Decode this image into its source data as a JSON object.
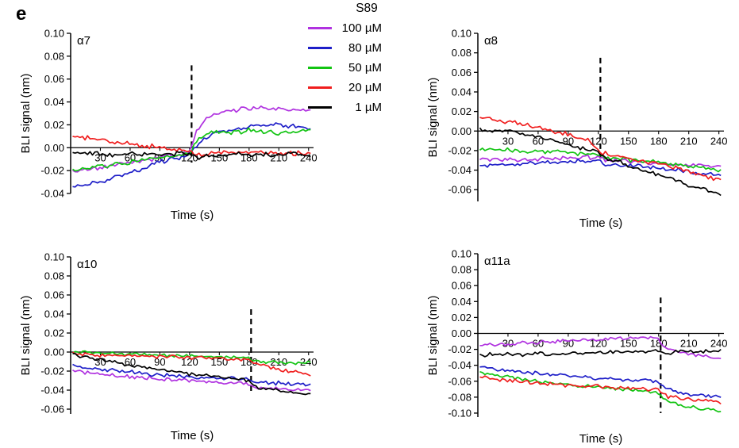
{
  "panel_label": "e",
  "legend": {
    "title": "S89",
    "entries": [
      {
        "label": "100 µM",
        "color": "#B032E0"
      },
      {
        "label": "80 µM",
        "color": "#1E1EC8"
      },
      {
        "label": "50 µM",
        "color": "#12C412"
      },
      {
        "label": "20 µM",
        "color": "#F01E1E"
      },
      {
        "label": "1 µM",
        "color": "#000000"
      }
    ]
  },
  "chart_data": [
    {
      "id": "a7",
      "type": "line",
      "title": "α7",
      "xlabel": "Time (s)",
      "ylabel": "BLI signal (nm)",
      "xlim": [
        0,
        245
      ],
      "ylim": [
        -0.04,
        0.1
      ],
      "xticks": [
        30,
        60,
        90,
        120,
        150,
        180,
        210,
        240
      ],
      "yticks": [
        0.1,
        0.08,
        0.06,
        0.04,
        0.02,
        0.0,
        -0.02,
        -0.04
      ],
      "vline": {
        "x": 122,
        "y_top": 0.072,
        "y_bottom": -0.013
      },
      "noise": 0.0016,
      "series": [
        {
          "name": "100 µM",
          "color": "#B032E0",
          "points": [
            [
              2,
              -0.021
            ],
            [
              60,
              -0.013
            ],
            [
              120,
              -0.004
            ],
            [
              126,
              0.012
            ],
            [
              135,
              0.025
            ],
            [
              150,
              0.031
            ],
            [
              180,
              0.035
            ],
            [
              210,
              0.034
            ],
            [
              243,
              0.033
            ]
          ]
        },
        {
          "name": "80 µM",
          "color": "#1E1EC8",
          "points": [
            [
              2,
              -0.034
            ],
            [
              30,
              -0.03
            ],
            [
              60,
              -0.022
            ],
            [
              90,
              -0.013
            ],
            [
              120,
              -0.006
            ],
            [
              130,
              0.006
            ],
            [
              150,
              0.014
            ],
            [
              180,
              0.018
            ],
            [
              210,
              0.02
            ],
            [
              243,
              0.017
            ]
          ]
        },
        {
          "name": "50 µM",
          "color": "#12C412",
          "points": [
            [
              2,
              -0.02
            ],
            [
              60,
              -0.013
            ],
            [
              120,
              -0.005
            ],
            [
              128,
              0.008
            ],
            [
              140,
              0.013
            ],
            [
              180,
              0.015
            ],
            [
              210,
              0.013
            ],
            [
              243,
              0.016
            ]
          ]
        },
        {
          "name": "20 µM",
          "color": "#F01E1E",
          "points": [
            [
              2,
              0.01
            ],
            [
              30,
              0.007
            ],
            [
              60,
              0.003
            ],
            [
              90,
              0.0
            ],
            [
              120,
              -0.003
            ],
            [
              126,
              -0.006
            ],
            [
              160,
              -0.004
            ],
            [
              243,
              -0.005
            ]
          ]
        },
        {
          "name": "1 µM",
          "color": "#000000",
          "points": [
            [
              2,
              -0.004
            ],
            [
              40,
              -0.006
            ],
            [
              120,
              -0.005
            ],
            [
              128,
              -0.008
            ],
            [
              170,
              -0.006
            ],
            [
              243,
              -0.006
            ]
          ]
        }
      ]
    },
    {
      "id": "a8",
      "type": "line",
      "title": "α8",
      "xlabel": "Time (s)",
      "ylabel": "BLI signal (nm)",
      "xlim": [
        0,
        245
      ],
      "ylim": [
        -0.072,
        0.1
      ],
      "xticks": [
        30,
        60,
        90,
        120,
        150,
        180,
        210,
        240
      ],
      "yticks": [
        0.1,
        0.08,
        0.06,
        0.04,
        0.02,
        0.0,
        -0.02,
        -0.04,
        -0.06
      ],
      "vline": {
        "x": 122,
        "y_top": 0.075,
        "y_bottom": -0.032
      },
      "noise": 0.0018,
      "series": [
        {
          "name": "100 µM",
          "color": "#B032E0",
          "points": [
            [
              2,
              -0.03
            ],
            [
              60,
              -0.029
            ],
            [
              120,
              -0.026
            ],
            [
              128,
              -0.03
            ],
            [
              180,
              -0.033
            ],
            [
              243,
              -0.036
            ]
          ]
        },
        {
          "name": "80 µM",
          "color": "#1E1EC8",
          "points": [
            [
              2,
              -0.036
            ],
            [
              60,
              -0.033
            ],
            [
              120,
              -0.03
            ],
            [
              128,
              -0.034
            ],
            [
              180,
              -0.038
            ],
            [
              210,
              -0.042
            ],
            [
              243,
              -0.046
            ]
          ]
        },
        {
          "name": "50 µM",
          "color": "#12C412",
          "points": [
            [
              2,
              -0.018
            ],
            [
              60,
              -0.021
            ],
            [
              120,
              -0.024
            ],
            [
              128,
              -0.028
            ],
            [
              180,
              -0.032
            ],
            [
              210,
              -0.036
            ],
            [
              243,
              -0.041
            ]
          ]
        },
        {
          "name": "20 µM",
          "color": "#F01E1E",
          "points": [
            [
              2,
              0.014
            ],
            [
              30,
              0.01
            ],
            [
              60,
              0.004
            ],
            [
              90,
              -0.004
            ],
            [
              110,
              -0.01
            ],
            [
              122,
              -0.022
            ],
            [
              150,
              -0.028
            ],
            [
              180,
              -0.033
            ],
            [
              210,
              -0.042
            ],
            [
              243,
              -0.05
            ]
          ]
        },
        {
          "name": "1 µM",
          "color": "#000000",
          "points": [
            [
              2,
              0.002
            ],
            [
              30,
              0.0
            ],
            [
              60,
              -0.006
            ],
            [
              90,
              -0.014
            ],
            [
              120,
              -0.022
            ],
            [
              126,
              -0.028
            ],
            [
              150,
              -0.035
            ],
            [
              180,
              -0.045
            ],
            [
              210,
              -0.055
            ],
            [
              243,
              -0.065
            ]
          ]
        }
      ]
    },
    {
      "id": "a10",
      "type": "line",
      "title": "α10",
      "xlabel": "Time (s)",
      "ylabel": "BLI signal (nm)",
      "xlim": [
        0,
        245
      ],
      "ylim": [
        -0.065,
        0.1
      ],
      "xticks": [
        30,
        60,
        90,
        120,
        150,
        180,
        210,
        240
      ],
      "yticks": [
        0.1,
        0.08,
        0.06,
        0.04,
        0.02,
        0.0,
        -0.02,
        -0.04,
        -0.06
      ],
      "vline": {
        "x": 182,
        "y_top": 0.045,
        "y_bottom": -0.045
      },
      "noise": 0.0015,
      "series": [
        {
          "name": "100 µM",
          "color": "#B032E0",
          "points": [
            [
              2,
              -0.02
            ],
            [
              60,
              -0.026
            ],
            [
              120,
              -0.03
            ],
            [
              180,
              -0.034
            ],
            [
              186,
              -0.037
            ],
            [
              243,
              -0.04
            ]
          ]
        },
        {
          "name": "80 µM",
          "color": "#1E1EC8",
          "points": [
            [
              2,
              -0.014
            ],
            [
              30,
              -0.018
            ],
            [
              60,
              -0.021
            ],
            [
              90,
              -0.024
            ],
            [
              120,
              -0.026
            ],
            [
              180,
              -0.029
            ],
            [
              186,
              -0.032
            ],
            [
              243,
              -0.034
            ]
          ]
        },
        {
          "name": "50 µM",
          "color": "#12C412",
          "points": [
            [
              2,
              0.0
            ],
            [
              60,
              -0.002
            ],
            [
              120,
              -0.004
            ],
            [
              180,
              -0.006
            ],
            [
              186,
              -0.01
            ],
            [
              243,
              -0.012
            ]
          ]
        },
        {
          "name": "20 µM",
          "color": "#F01E1E",
          "points": [
            [
              2,
              -0.002
            ],
            [
              60,
              -0.004
            ],
            [
              120,
              -0.006
            ],
            [
              180,
              -0.008
            ],
            [
              186,
              -0.012
            ],
            [
              210,
              -0.018
            ],
            [
              243,
              -0.024
            ]
          ]
        },
        {
          "name": "1 µM",
          "color": "#000000",
          "points": [
            [
              2,
              -0.002
            ],
            [
              30,
              -0.008
            ],
            [
              60,
              -0.014
            ],
            [
              90,
              -0.018
            ],
            [
              120,
              -0.023
            ],
            [
              150,
              -0.027
            ],
            [
              180,
              -0.03
            ],
            [
              186,
              -0.037
            ],
            [
              210,
              -0.04
            ],
            [
              243,
              -0.044
            ]
          ]
        }
      ]
    },
    {
      "id": "a11a",
      "type": "line",
      "title": "α11a",
      "xlabel": "Time (s)",
      "ylabel": "BLI signal (nm)",
      "xlim": [
        0,
        245
      ],
      "ylim": [
        -0.105,
        0.1
      ],
      "xticks": [
        30,
        60,
        90,
        120,
        150,
        180,
        210,
        240
      ],
      "yticks": [
        0.1,
        0.08,
        0.06,
        0.04,
        0.02,
        0.0,
        -0.02,
        -0.04,
        -0.06,
        -0.08,
        -0.1
      ],
      "vline": {
        "x": 182,
        "y_top": 0.045,
        "y_bottom": -0.1
      },
      "noise": 0.0018,
      "series": [
        {
          "name": "100 µM",
          "color": "#B032E0",
          "points": [
            [
              2,
              -0.016
            ],
            [
              30,
              -0.013
            ],
            [
              60,
              -0.011
            ],
            [
              90,
              -0.009
            ],
            [
              120,
              -0.008
            ],
            [
              150,
              -0.006
            ],
            [
              178,
              -0.005
            ],
            [
              186,
              -0.018
            ],
            [
              210,
              -0.026
            ],
            [
              243,
              -0.031
            ]
          ]
        },
        {
          "name": "80 µM",
          "color": "#1E1EC8",
          "points": [
            [
              2,
              -0.042
            ],
            [
              30,
              -0.047
            ],
            [
              60,
              -0.05
            ],
            [
              90,
              -0.053
            ],
            [
              120,
              -0.056
            ],
            [
              150,
              -0.058
            ],
            [
              180,
              -0.06
            ],
            [
              188,
              -0.07
            ],
            [
              210,
              -0.076
            ],
            [
              243,
              -0.08
            ]
          ]
        },
        {
          "name": "50 µM",
          "color": "#12C412",
          "points": [
            [
              2,
              -0.049
            ],
            [
              30,
              -0.055
            ],
            [
              60,
              -0.06
            ],
            [
              90,
              -0.064
            ],
            [
              120,
              -0.068
            ],
            [
              150,
              -0.071
            ],
            [
              180,
              -0.074
            ],
            [
              188,
              -0.086
            ],
            [
              210,
              -0.092
            ],
            [
              243,
              -0.098
            ]
          ]
        },
        {
          "name": "20 µM",
          "color": "#F01E1E",
          "points": [
            [
              2,
              -0.055
            ],
            [
              30,
              -0.059
            ],
            [
              60,
              -0.062
            ],
            [
              90,
              -0.065
            ],
            [
              120,
              -0.067
            ],
            [
              150,
              -0.069
            ],
            [
              180,
              -0.071
            ],
            [
              188,
              -0.079
            ],
            [
              210,
              -0.083
            ],
            [
              243,
              -0.086
            ]
          ]
        },
        {
          "name": "1 µM",
          "color": "#000000",
          "points": [
            [
              2,
              -0.027
            ],
            [
              60,
              -0.026
            ],
            [
              120,
              -0.024
            ],
            [
              180,
              -0.022
            ],
            [
              186,
              -0.024
            ],
            [
              243,
              -0.022
            ]
          ]
        }
      ]
    }
  ]
}
